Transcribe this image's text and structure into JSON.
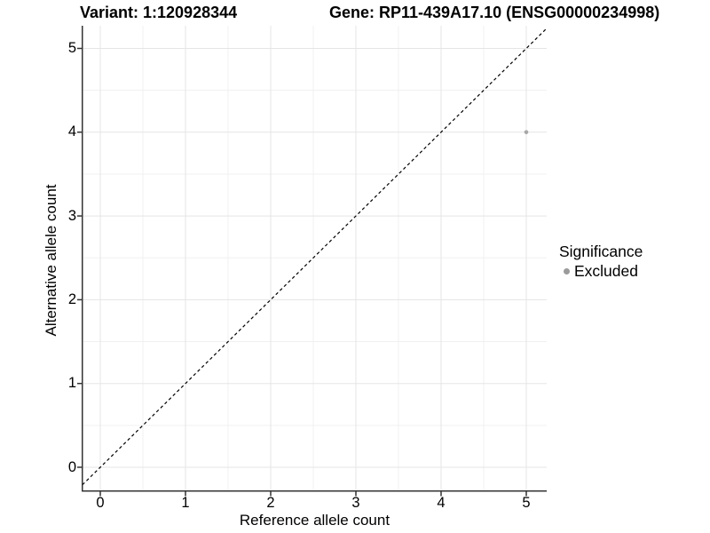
{
  "chart_data": {
    "type": "scatter",
    "title_variant": "Variant: 1:120928344",
    "title_gene": "Gene: RP11-439A17.10 (ENSG00000234998)",
    "xlabel": "Reference allele count",
    "ylabel": "Alternative allele count",
    "xlim": [
      -0.25,
      5.25
    ],
    "ylim": [
      -0.25,
      5.25
    ],
    "xticks": [
      0,
      1,
      2,
      3,
      4,
      5
    ],
    "yticks": [
      0,
      1,
      2,
      3,
      4,
      5
    ],
    "grid": "major+minor",
    "minor_grid_step": 0.5,
    "legend_position": "right",
    "identity_line": {
      "slope": 1,
      "intercept": 0,
      "style": "dashed",
      "color": "#000000"
    },
    "series": [
      {
        "name": "Excluded",
        "color": "#a8a8a8",
        "points": [
          {
            "x": 5,
            "y": 4
          }
        ]
      }
    ],
    "legend": {
      "title": "Significance",
      "items": [
        {
          "label": "Excluded",
          "color": "#9b9b9b"
        }
      ]
    }
  },
  "colors": {
    "axis_line": "#333333",
    "tick_mark": "#333333",
    "grid_major": "#e5e5e5",
    "grid_minor": "#f0f0f0",
    "text": "#000000",
    "background": "#ffffff"
  }
}
